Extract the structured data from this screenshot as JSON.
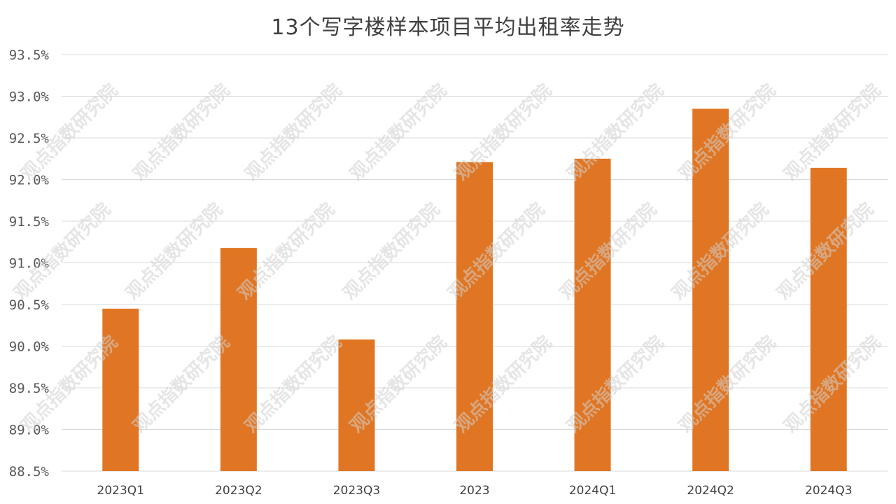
{
  "chart_data": {
    "type": "bar",
    "title": "13个写字楼样本项目平均出租率走势",
    "categories": [
      "2023Q1",
      "2023Q2",
      "2023Q3",
      "2023",
      "2024Q1",
      "2024Q2",
      "2024Q3"
    ],
    "values": [
      90.45,
      91.18,
      90.08,
      92.21,
      92.25,
      92.85,
      92.14
    ],
    "ylim": [
      88.5,
      93.5
    ],
    "yticks": [
      "93.5%",
      "93.0%",
      "92.5%",
      "92.0%",
      "91.5%",
      "91.0%",
      "90.5%",
      "90.0%",
      "89.5%",
      "89.0%",
      "88.5%"
    ],
    "xlabel": "",
    "ylabel": "",
    "grid": true,
    "bar_color": "#e07623",
    "watermark": "观点指数研究院"
  }
}
